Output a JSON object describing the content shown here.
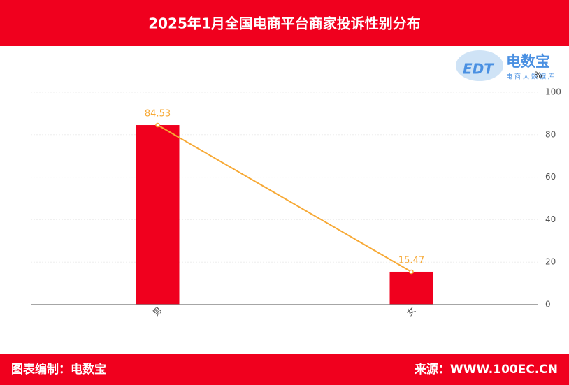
{
  "chart_data": {
    "type": "bar-line",
    "title": "2025年1月全国电商平台商家投诉性别分布",
    "categories": [
      "男",
      "女"
    ],
    "series": [
      {
        "type": "bar",
        "color": "#f0001e",
        "values": [
          84.53,
          15.47
        ]
      },
      {
        "type": "line",
        "color": "#f7a935",
        "values": [
          84.53,
          15.47
        ]
      }
    ],
    "y_unit": "%",
    "ylim": [
      0,
      100
    ],
    "yticks": [
      0,
      20,
      40,
      60,
      80,
      100
    ],
    "grid": true,
    "watermark": {
      "logo": "EDT",
      "name": "电数宝",
      "tagline": "电商大数据库"
    },
    "footer": {
      "left": "图表编制：电数宝",
      "right": "来源：WWW.100EC.CN"
    }
  }
}
